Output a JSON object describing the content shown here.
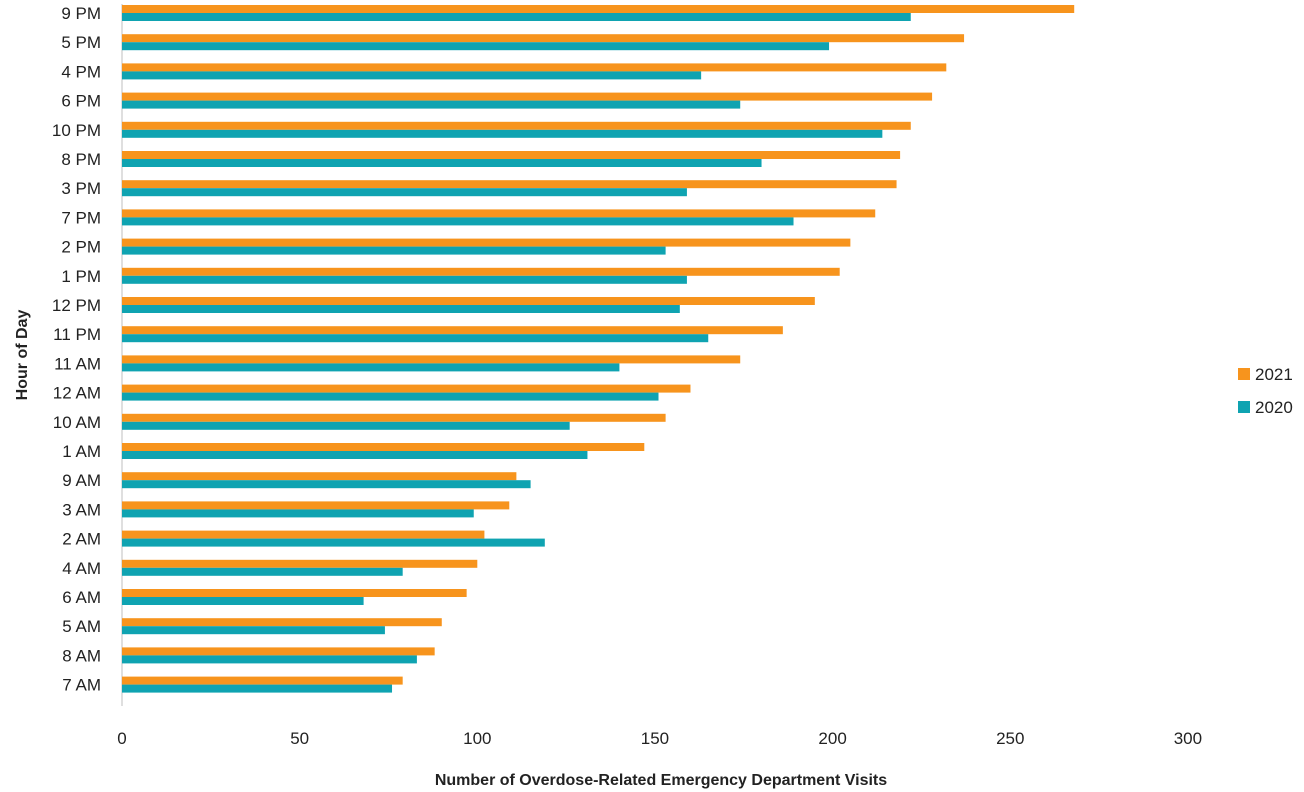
{
  "chart_data": {
    "type": "bar",
    "orientation": "horizontal",
    "title": "",
    "xlabel": "Number of Overdose-Related Emergency Department Visits",
    "ylabel": "Hour of Day",
    "xlim": [
      0,
      300
    ],
    "xticks": [
      0,
      50,
      100,
      150,
      200,
      250,
      300
    ],
    "grid": false,
    "legend_position": "right",
    "categories": [
      "9 PM",
      "5 PM",
      "4 PM",
      "6 PM",
      "10 PM",
      "8 PM",
      "3 PM",
      "7 PM",
      "2 PM",
      "1 PM",
      "12 PM",
      "11 PM",
      "11 AM",
      "12 AM",
      "10 AM",
      "1 AM",
      "9 AM",
      "3 AM",
      "2 AM",
      "4 AM",
      "6 AM",
      "5 AM",
      "8 AM",
      "7 AM"
    ],
    "series": [
      {
        "name": "2021",
        "color": "#F7941D",
        "values": [
          268,
          237,
          232,
          228,
          222,
          219,
          218,
          212,
          205,
          202,
          195,
          186,
          174,
          160,
          153,
          147,
          111,
          109,
          102,
          100,
          97,
          90,
          88,
          79
        ]
      },
      {
        "name": "2020",
        "color": "#0FA3B1",
        "values": [
          222,
          199,
          163,
          174,
          214,
          180,
          159,
          189,
          153,
          159,
          157,
          165,
          140,
          151,
          126,
          131,
          115,
          99,
          119,
          79,
          68,
          74,
          83,
          76
        ]
      }
    ]
  }
}
